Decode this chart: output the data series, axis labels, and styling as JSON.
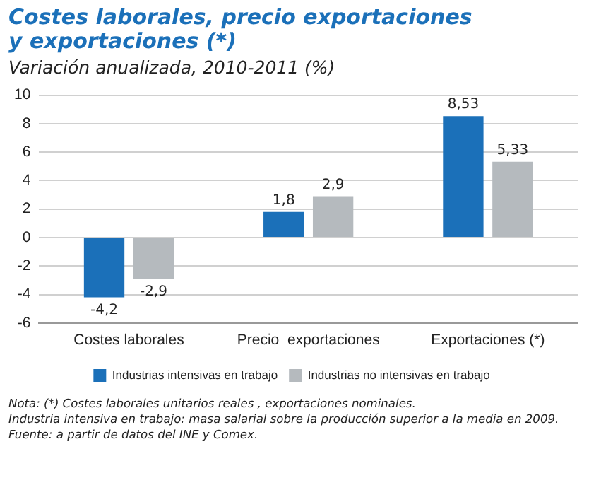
{
  "chart_data": {
    "type": "bar",
    "title": "Costes laborales, precio exportaciones y exportaciones (*)",
    "subtitle": "Variación anualizada, 2010-2011 (%)",
    "categories": [
      "Costes laborales",
      "Precio  exportaciones",
      "Exportaciones (*)"
    ],
    "series": [
      {
        "name": "Industrias intensivas en trabajo",
        "color": "#1b70b9",
        "values": [
          -4.2,
          1.8,
          8.53
        ],
        "value_labels": [
          "-4,2",
          "1,8",
          "8,53"
        ]
      },
      {
        "name": "Industrias no intensivas en trabajo",
        "color": "#b5babe",
        "values": [
          -2.9,
          2.9,
          5.33
        ],
        "value_labels": [
          "-2,9",
          "2,9",
          "5,33"
        ]
      }
    ],
    "ylim": [
      -6,
      10
    ],
    "yticks": [
      -6,
      -4,
      -2,
      0,
      2,
      4,
      6,
      8,
      10
    ],
    "grid": "y",
    "legend": "bottom",
    "annotations": [
      "Nota: (*) Costes laborales unitarios reales , exportaciones nominales.",
      "Industria intensiva en trabajo: masa salarial sobre la producción superior a la media en 2009.",
      "Fuente: a partir de datos del INE y Comex."
    ]
  }
}
